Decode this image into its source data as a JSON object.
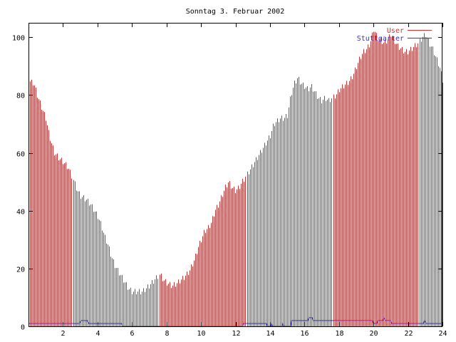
{
  "chart_data": {
    "type": "bar",
    "title": "Sonntag 3. Februar 2002",
    "xlabel": "",
    "ylabel": "",
    "xlim": [
      0,
      24
    ],
    "ylim": [
      0,
      105
    ],
    "x_ticks": [
      2,
      4,
      6,
      8,
      10,
      12,
      14,
      16,
      18,
      20,
      22,
      24
    ],
    "y_ticks": [
      0,
      20,
      40,
      60,
      80,
      100
    ],
    "grid": false,
    "legend_position": "top-right",
    "series": [
      {
        "name": "User",
        "type": "impulses",
        "color": "#cc3333",
        "anchors": [
          [
            0.0,
            85
          ],
          [
            0.3,
            84
          ],
          [
            0.5,
            80
          ],
          [
            0.8,
            75
          ],
          [
            1.0,
            72
          ],
          [
            1.2,
            66
          ],
          [
            1.5,
            60
          ],
          [
            1.8,
            58
          ],
          [
            2.0,
            57
          ],
          [
            2.3,
            55
          ],
          [
            2.5,
            52
          ],
          [
            2.8,
            47
          ],
          [
            3.0,
            45
          ],
          [
            3.3,
            44
          ],
          [
            3.6,
            42
          ],
          [
            3.8,
            40
          ],
          [
            4.0,
            38
          ],
          [
            4.2,
            35
          ],
          [
            4.4,
            31
          ],
          [
            4.6,
            28
          ],
          [
            4.8,
            24
          ],
          [
            5.0,
            21
          ],
          [
            5.2,
            19
          ],
          [
            5.4,
            17
          ],
          [
            5.6,
            15
          ],
          [
            5.8,
            13
          ],
          [
            6.0,
            12
          ],
          [
            6.3,
            12
          ],
          [
            6.6,
            12
          ],
          [
            6.8,
            13
          ],
          [
            7.0,
            14
          ],
          [
            7.3,
            16
          ],
          [
            7.6,
            18
          ],
          [
            7.8,
            16
          ],
          [
            8.0,
            15
          ],
          [
            8.3,
            14
          ],
          [
            8.6,
            15
          ],
          [
            8.8,
            16
          ],
          [
            9.0,
            17
          ],
          [
            9.3,
            19
          ],
          [
            9.6,
            23
          ],
          [
            9.8,
            27
          ],
          [
            10.0,
            30
          ],
          [
            10.2,
            33
          ],
          [
            10.4,
            34
          ],
          [
            10.6,
            36
          ],
          [
            10.8,
            40
          ],
          [
            11.0,
            42
          ],
          [
            11.2,
            45
          ],
          [
            11.4,
            48
          ],
          [
            11.6,
            50
          ],
          [
            11.8,
            48
          ],
          [
            12.0,
            47
          ],
          [
            12.2,
            48
          ],
          [
            12.4,
            50
          ],
          [
            12.6,
            52
          ],
          [
            12.8,
            54
          ],
          [
            13.0,
            56
          ],
          [
            13.2,
            58
          ],
          [
            13.4,
            60
          ],
          [
            13.6,
            62
          ],
          [
            13.8,
            64
          ],
          [
            14.0,
            66
          ],
          [
            14.2,
            70
          ],
          [
            14.4,
            71
          ],
          [
            14.6,
            72
          ],
          [
            14.8,
            72
          ],
          [
            15.0,
            73
          ],
          [
            15.2,
            80
          ],
          [
            15.4,
            84
          ],
          [
            15.6,
            86
          ],
          [
            15.8,
            84
          ],
          [
            16.0,
            83
          ],
          [
            16.2,
            82
          ],
          [
            16.4,
            83
          ],
          [
            16.6,
            81
          ],
          [
            16.8,
            79
          ],
          [
            17.0,
            78
          ],
          [
            17.2,
            79
          ],
          [
            17.4,
            78
          ],
          [
            17.6,
            79
          ],
          [
            17.8,
            80
          ],
          [
            18.0,
            82
          ],
          [
            18.2,
            83
          ],
          [
            18.4,
            84
          ],
          [
            18.6,
            85
          ],
          [
            18.8,
            87
          ],
          [
            19.0,
            90
          ],
          [
            19.2,
            93
          ],
          [
            19.4,
            95
          ],
          [
            19.6,
            96
          ],
          [
            19.8,
            98
          ],
          [
            20.0,
            103
          ],
          [
            20.2,
            100
          ],
          [
            20.4,
            99
          ],
          [
            20.6,
            98
          ],
          [
            20.8,
            99
          ],
          [
            21.0,
            101
          ],
          [
            21.2,
            99
          ],
          [
            21.4,
            97
          ],
          [
            21.6,
            96
          ],
          [
            21.8,
            95
          ],
          [
            22.0,
            95
          ],
          [
            22.2,
            96
          ],
          [
            22.4,
            97
          ],
          [
            22.6,
            98
          ],
          [
            22.8,
            100
          ],
          [
            23.0,
            101
          ],
          [
            23.2,
            98
          ],
          [
            23.4,
            96
          ],
          [
            23.6,
            93
          ],
          [
            23.8,
            90
          ],
          [
            24.0,
            85
          ]
        ],
        "step": 0.0833
      },
      {
        "name": "Stuttgarter",
        "type": "line",
        "color": "#3333cc",
        "points": [
          [
            0.0,
            1
          ],
          [
            2.95,
            1
          ],
          [
            3.05,
            2
          ],
          [
            3.4,
            2
          ],
          [
            3.5,
            1
          ],
          [
            5.4,
            1
          ],
          [
            5.45,
            0
          ],
          [
            12.4,
            0
          ],
          [
            12.45,
            1
          ],
          [
            13.8,
            1
          ],
          [
            13.85,
            0
          ],
          [
            14.05,
            0
          ],
          [
            14.1,
            1
          ],
          [
            14.15,
            0
          ],
          [
            14.7,
            0
          ],
          [
            14.75,
            1
          ],
          [
            14.8,
            0
          ],
          [
            15.2,
            0
          ],
          [
            15.25,
            2
          ],
          [
            16.2,
            2
          ],
          [
            16.25,
            3
          ],
          [
            16.45,
            3
          ],
          [
            16.5,
            2
          ],
          [
            19.95,
            2
          ],
          [
            20.0,
            1
          ],
          [
            20.2,
            1
          ],
          [
            20.25,
            2
          ],
          [
            20.55,
            2
          ],
          [
            20.6,
            3
          ],
          [
            20.7,
            2
          ],
          [
            21.0,
            2
          ],
          [
            21.05,
            1
          ],
          [
            22.9,
            1
          ],
          [
            22.95,
            2
          ],
          [
            23.05,
            1
          ],
          [
            24.0,
            1
          ]
        ]
      }
    ]
  }
}
